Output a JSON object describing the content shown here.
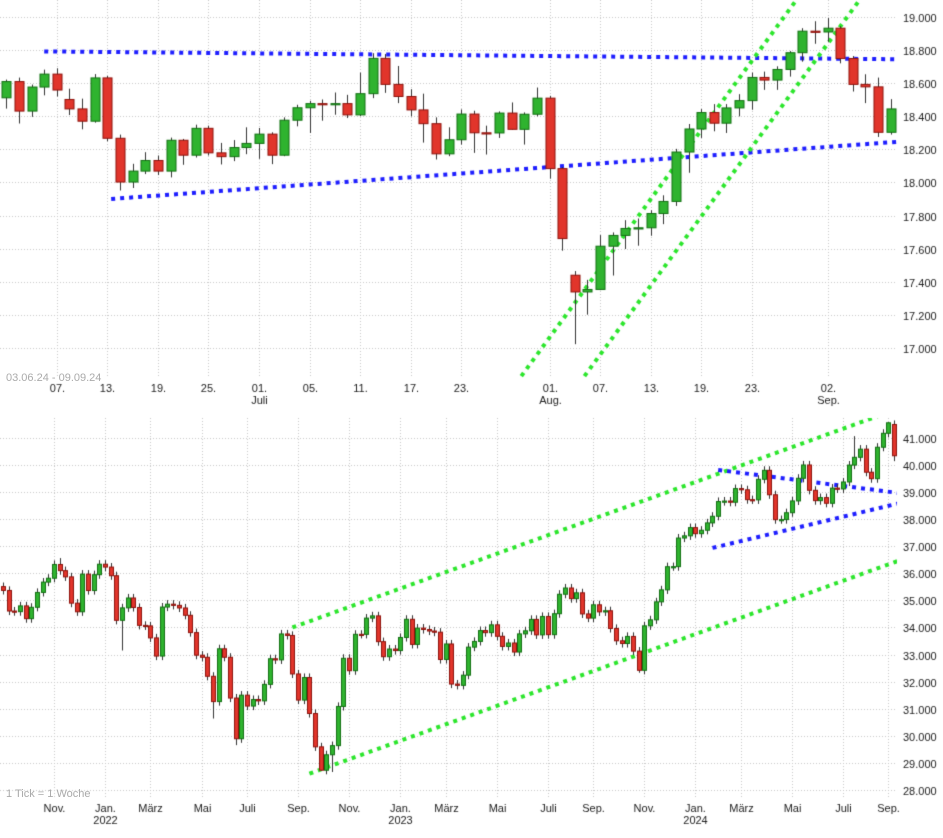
{
  "colors": {
    "background": "#ffffff",
    "grid": "#c9c9c9",
    "axis_text": "#222222",
    "muted_text": "#aaaaaa",
    "candle_up_fill": "#2fb32f",
    "candle_up_border": "#127012",
    "candle_down_fill": "#e1352b",
    "candle_down_border": "#8e120c",
    "wick": "#333333",
    "trend_blue": "#1e1eff",
    "trend_green": "#2ce62c"
  },
  "chart_data": [
    {
      "id": "daily",
      "type": "candlestick",
      "footer_label": "03.06.24 - 09.09.24",
      "y_min": 16820,
      "y_max": 19100,
      "y_ticks": [
        {
          "value": 19000,
          "label": "19.000"
        },
        {
          "value": 18800,
          "label": "18.800"
        },
        {
          "value": 18600,
          "label": "18.600"
        },
        {
          "value": 18400,
          "label": "18.400"
        },
        {
          "value": 18200,
          "label": "18.200"
        },
        {
          "value": 18000,
          "label": "18.000"
        },
        {
          "value": 17800,
          "label": "17.800"
        },
        {
          "value": 17600,
          "label": "17.600"
        },
        {
          "value": 17400,
          "label": "17.400"
        },
        {
          "value": 17200,
          "label": "17.200"
        },
        {
          "value": 17000,
          "label": "17.000"
        }
      ],
      "x_ticks": [
        {
          "index": 4,
          "label": "07."
        },
        {
          "index": 8,
          "label": "13."
        },
        {
          "index": 12,
          "label": "19."
        },
        {
          "index": 16,
          "label": "25."
        },
        {
          "index": 20,
          "label": "01.",
          "sub": "Juli"
        },
        {
          "index": 24,
          "label": "05."
        },
        {
          "index": 28,
          "label": "11."
        },
        {
          "index": 32,
          "label": "17."
        },
        {
          "index": 36,
          "label": "23."
        },
        {
          "index": 43,
          "label": "01.",
          "sub": "Aug."
        },
        {
          "index": 47,
          "label": "07."
        },
        {
          "index": 51,
          "label": "13."
        },
        {
          "index": 55,
          "label": "19."
        },
        {
          "index": 59,
          "label": "23."
        },
        {
          "index": 65,
          "label": "02.",
          "sub": "Sep."
        }
      ],
      "candles": [
        [
          18510,
          18620,
          18445,
          18608
        ],
        [
          18608,
          18632,
          18355,
          18430
        ],
        [
          18430,
          18590,
          18395,
          18575
        ],
        [
          18575,
          18680,
          18525,
          18653
        ],
        [
          18653,
          18688,
          18518,
          18557
        ],
        [
          18500,
          18565,
          18406,
          18443
        ],
        [
          18443,
          18505,
          18320,
          18369
        ],
        [
          18369,
          18653,
          18360,
          18630
        ],
        [
          18630,
          18642,
          18248,
          18266
        ],
        [
          18266,
          18288,
          17951,
          18002
        ],
        [
          18002,
          18112,
          17966,
          18068
        ],
        [
          18068,
          18182,
          18050,
          18132
        ],
        [
          18132,
          18162,
          18044,
          18068
        ],
        [
          18068,
          18270,
          18030,
          18254
        ],
        [
          18254,
          18262,
          18106,
          18164
        ],
        [
          18164,
          18348,
          18150,
          18326
        ],
        [
          18326,
          18342,
          18162,
          18178
        ],
        [
          18178,
          18238,
          18108,
          18155
        ],
        [
          18155,
          18255,
          18128,
          18210
        ],
        [
          18210,
          18332,
          18170,
          18235
        ],
        [
          18235,
          18328,
          18142,
          18291
        ],
        [
          18291,
          18302,
          18110,
          18164
        ],
        [
          18164,
          18392,
          18158,
          18375
        ],
        [
          18375,
          18468,
          18338,
          18450
        ],
        [
          18450,
          18492,
          18298,
          18475
        ],
        [
          18475,
          18500,
          18372,
          18472
        ],
        [
          18472,
          18542,
          18408,
          18475
        ],
        [
          18475,
          18528,
          18388,
          18407
        ],
        [
          18407,
          18662,
          18400,
          18535
        ],
        [
          18535,
          18779,
          18508,
          18748
        ],
        [
          18748,
          18774,
          18540,
          18591
        ],
        [
          18591,
          18702,
          18478,
          18518
        ],
        [
          18518,
          18562,
          18398,
          18437
        ],
        [
          18437,
          18535,
          18240,
          18354
        ],
        [
          18354,
          18392,
          18138,
          18172
        ],
        [
          18172,
          18332,
          18158,
          18257
        ],
        [
          18257,
          18440,
          18228,
          18412
        ],
        [
          18412,
          18432,
          18178,
          18299
        ],
        [
          18299,
          18342,
          18168,
          18298
        ],
        [
          18298,
          18428,
          18268,
          18418
        ],
        [
          18418,
          18482,
          18318,
          18320
        ],
        [
          18320,
          18422,
          18228,
          18411
        ],
        [
          18411,
          18572,
          18398,
          18508
        ],
        [
          18508,
          18522,
          18022,
          18083
        ],
        [
          18083,
          18092,
          17588,
          17661
        ],
        [
          17440,
          17465,
          17024,
          17339
        ],
        [
          17339,
          17412,
          17202,
          17354
        ],
        [
          17354,
          17682,
          17350,
          17615
        ],
        [
          17615,
          17698,
          17438,
          17680
        ],
        [
          17680,
          17772,
          17598,
          17722
        ],
        [
          17722,
          17782,
          17618,
          17726
        ],
        [
          17726,
          17832,
          17678,
          17812
        ],
        [
          17812,
          17922,
          17748,
          17885
        ],
        [
          17885,
          18202,
          17858,
          18183
        ],
        [
          18183,
          18352,
          18058,
          18322
        ],
        [
          18322,
          18442,
          18268,
          18421
        ],
        [
          18421,
          18472,
          18308,
          18357
        ],
        [
          18357,
          18472,
          18298,
          18449
        ],
        [
          18449,
          18532,
          18398,
          18493
        ],
        [
          18493,
          18662,
          18438,
          18633
        ],
        [
          18633,
          18668,
          18558,
          18617
        ],
        [
          18617,
          18700,
          18558,
          18681
        ],
        [
          18681,
          18792,
          18638,
          18782
        ],
        [
          18782,
          18930,
          18728,
          18912
        ],
        [
          18912,
          18972,
          18836,
          18907
        ],
        [
          18907,
          18991,
          18848,
          18930
        ],
        [
          18930,
          18942,
          18718,
          18747
        ],
        [
          18747,
          18762,
          18548,
          18591
        ],
        [
          18591,
          18652,
          18478,
          18576
        ],
        [
          18576,
          18632,
          18274,
          18302
        ],
        [
          18302,
          18502,
          18288,
          18443
        ]
      ],
      "trendlines": [
        {
          "color": "trend_blue",
          "points": [
            [
              3,
              18790
            ],
            [
              71.5,
              18742
            ]
          ]
        },
        {
          "color": "trend_blue",
          "points": [
            [
              8.3,
              17900
            ],
            [
              71.5,
              18250
            ]
          ]
        },
        {
          "color": "trend_green",
          "points": [
            [
              39.5,
              16700
            ],
            [
              63.5,
              19200
            ]
          ]
        },
        {
          "color": "trend_green",
          "points": [
            [
              44.5,
              16700
            ],
            [
              68.5,
              19200
            ]
          ]
        }
      ]
    },
    {
      "id": "weekly",
      "type": "candlestick",
      "footer_label": "1 Tick = 1 Woche",
      "y_min": 27700,
      "y_max": 41740,
      "default_wick": 150,
      "y_ticks": [
        {
          "value": 41000,
          "label": "41.000"
        },
        {
          "value": 40000,
          "label": "40.000"
        },
        {
          "value": 39000,
          "label": "39.000"
        },
        {
          "value": 38000,
          "label": "38.000"
        },
        {
          "value": 37000,
          "label": "37.000"
        },
        {
          "value": 36000,
          "label": "36.000"
        },
        {
          "value": 35000,
          "label": "35.000"
        },
        {
          "value": 34000,
          "label": "34.000"
        },
        {
          "value": 33000,
          "label": "33.000"
        },
        {
          "value": 32000,
          "label": "32.000"
        },
        {
          "value": 31000,
          "label": "31.000"
        },
        {
          "value": 30000,
          "label": "30.000"
        },
        {
          "value": 29000,
          "label": "29.000"
        },
        {
          "value": 28000,
          "label": "28.000"
        }
      ],
      "x_ticks": [
        {
          "index": 9,
          "label": "Nov."
        },
        {
          "index": 18,
          "label": "Jan.",
          "sub": "2022"
        },
        {
          "index": 26,
          "label": "März"
        },
        {
          "index": 35,
          "label": "Mai"
        },
        {
          "index": 43,
          "label": "Juli"
        },
        {
          "index": 52,
          "label": "Sep."
        },
        {
          "index": 61,
          "label": "Nov."
        },
        {
          "index": 70,
          "label": "Jan.",
          "sub": "2023"
        },
        {
          "index": 78,
          "label": "März"
        },
        {
          "index": 87,
          "label": "Mai"
        },
        {
          "index": 96,
          "label": "Juli"
        },
        {
          "index": 104,
          "label": "Sep."
        },
        {
          "index": 113,
          "label": "Nov."
        },
        {
          "index": 122,
          "label": "Jan.",
          "sub": "2024"
        },
        {
          "index": 130,
          "label": "März"
        },
        {
          "index": 139,
          "label": "Mai"
        },
        {
          "index": 148,
          "label": "Juli"
        },
        {
          "index": 156,
          "label": "Sep."
        }
      ],
      "closes": [
        35369,
        34608,
        34585,
        34798,
        34326,
        34746,
        35295,
        35677,
        35820,
        36328,
        36100,
        35870,
        34899,
        34580,
        35971,
        35365,
        35950,
        36338,
        36232,
        35912,
        34265,
        34725,
        35090,
        34738,
        34079,
        34059,
        33615,
        32944,
        34755,
        34861,
        34818,
        34721,
        34451,
        33811,
        32977,
        32899,
        32197,
        31262,
        33213,
        32900,
        31393,
        29889,
        31500,
        31097,
        31338,
        31288,
        31899,
        32845,
        32803,
        33761,
        33707,
        32283,
        31318,
        32152,
        30822,
        29590,
        28726,
        29297,
        29635,
        31083,
        32862,
        32403,
        33748,
        33746,
        34347,
        34429,
        33476,
        32920,
        33204,
        33147,
        33631,
        34303,
        33375,
        33978,
        33926,
        33869,
        33827,
        32817,
        33391,
        31910,
        31862,
        32238,
        33274,
        33485,
        33886,
        33809,
        34098,
        33675,
        33300,
        33427,
        33093,
        33763,
        33877,
        34299,
        33727,
        34408,
        33735,
        34509,
        35228,
        35459,
        35066,
        35281,
        34501,
        34347,
        34838,
        34577,
        34618,
        33964,
        33508,
        33408,
        33670,
        33127,
        32418,
        34061,
        34283,
        34947,
        35390,
        36246,
        36248,
        37305,
        37386,
        37690,
        37466,
        37593,
        37864,
        38109,
        38654,
        38672,
        38628,
        39132,
        39087,
        38723,
        38715,
        39476,
        39807,
        38904,
        37983,
        37986,
        38240,
        38676,
        39513,
        40004,
        39069,
        38686,
        38799,
        38589,
        39150,
        39119,
        39376,
        40001,
        40288,
        40589,
        39737,
        39498,
        40660,
        41175,
        41563,
        40345
      ],
      "overrides": {
        "10": {
          "high": 36565
        },
        "21": {
          "low": 33150
        },
        "37": {
          "low": 30636
        },
        "41": {
          "low": 29653
        },
        "56": {
          "low": 28716
        },
        "58": {
          "low": 28661
        },
        "112": {
          "low": 32327
        },
        "150": {
          "high": 41070
        },
        "156": {
          "high": 41585
        },
        "157": {
          "open": 41500,
          "low": 40145
        }
      },
      "trendlines": [
        {
          "color": "trend_green",
          "points": [
            [
              51,
              34000
            ],
            [
              158.5,
              42140
            ]
          ]
        },
        {
          "color": "trend_green",
          "points": [
            [
              54,
              28600
            ],
            [
              159,
              36560
            ]
          ]
        },
        {
          "color": "trend_blue",
          "points": [
            [
              126,
              39820
            ],
            [
              158.5,
              38950
            ]
          ]
        },
        {
          "color": "trend_blue",
          "points": [
            [
              125,
              36940
            ],
            [
              158.5,
              38620
            ]
          ]
        }
      ]
    }
  ]
}
